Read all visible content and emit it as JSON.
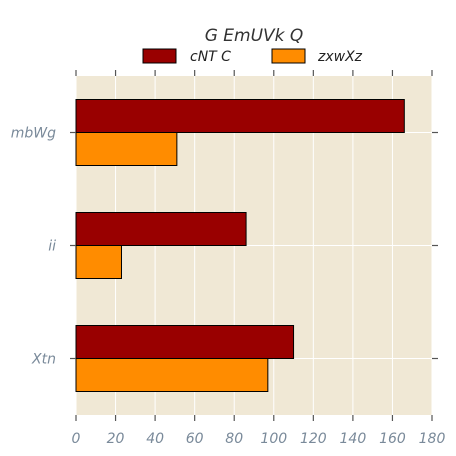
{
  "chart_data": {
    "type": "bar",
    "orientation": "horizontal",
    "title": "G EmUVk Q",
    "xlabel": "",
    "ylabel": "",
    "categories": [
      "mbWg",
      "ii",
      "Xtn"
    ],
    "series": [
      {
        "name": "cNT C",
        "values": [
          166,
          86,
          110
        ],
        "color": "#990000"
      },
      {
        "name": "zxwXz",
        "values": [
          51,
          23,
          97
        ],
        "color": "#ff8c00"
      }
    ],
    "xlim": [
      0,
      180
    ],
    "xticks": [
      0,
      20,
      40,
      60,
      80,
      100,
      120,
      140,
      160,
      180
    ],
    "grid": true,
    "legend_position": "top-center",
    "background_color": "#f0e8d5",
    "grid_color": "#ffffff"
  }
}
